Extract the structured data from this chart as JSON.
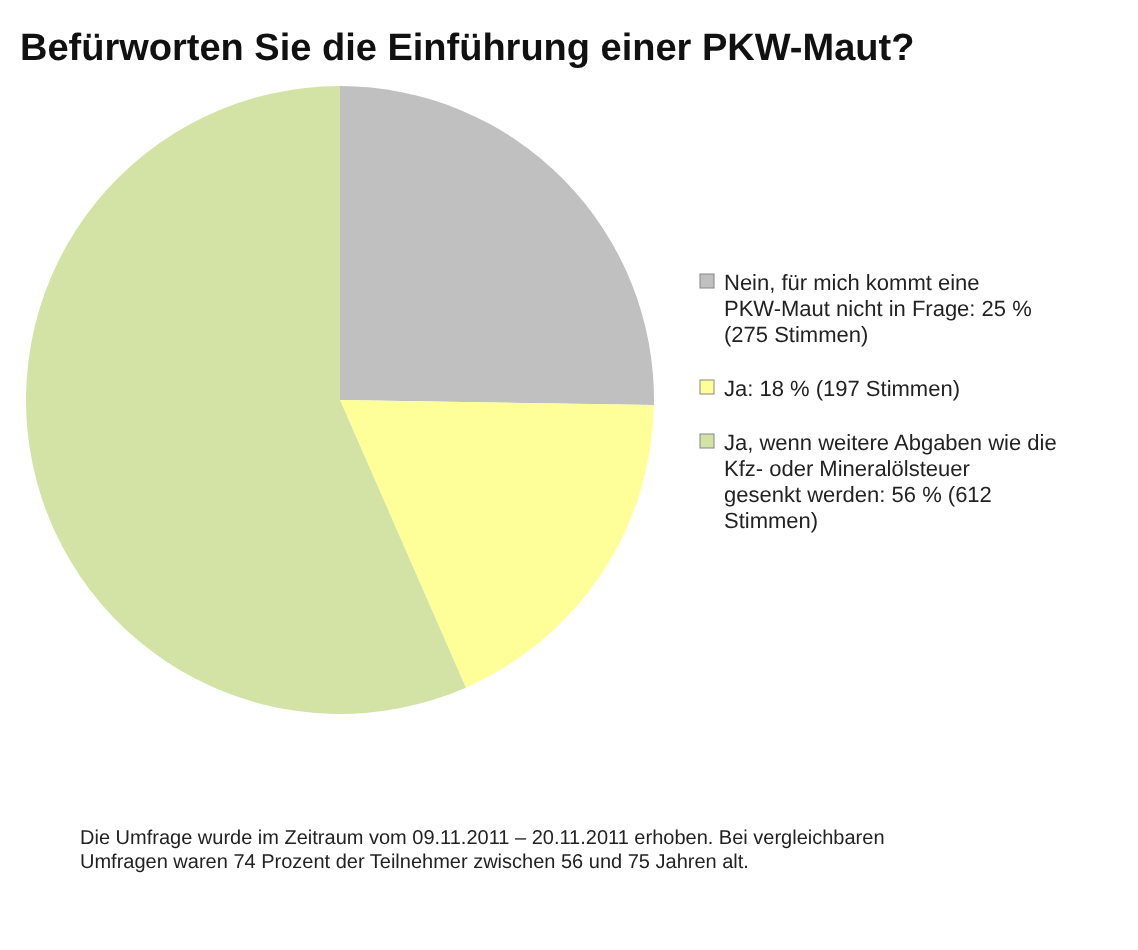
{
  "chart_data": {
    "type": "pie",
    "title": "Befürworten Sie die Einführung einer PKW-Maut?",
    "categories": [
      "Nein, für mich kommt eine PKW-Maut nicht in Frage: 25 % (275 Stimmen)",
      "Ja: 18 % (197 Stimmen)",
      "Ja, wenn weitere Abgaben wie die Kfz- oder Mineralölsteuer gesenkt werden: 56 % (612 Stimmen)"
    ],
    "values": [
      25,
      18,
      56
    ],
    "colors": [
      "#c0c0c0",
      "#ffff99",
      "#d3e3a5"
    ],
    "legend": "right",
    "annotations": [
      "Die Umfrage wurde im Zeitraum vom 09.11.2011 – 20.11.2011 erhoben. Bei vergleichbaren Umfragen waren 74 Prozent der Teilnehmer zwischen 56 und 75 Jahren alt."
    ]
  }
}
